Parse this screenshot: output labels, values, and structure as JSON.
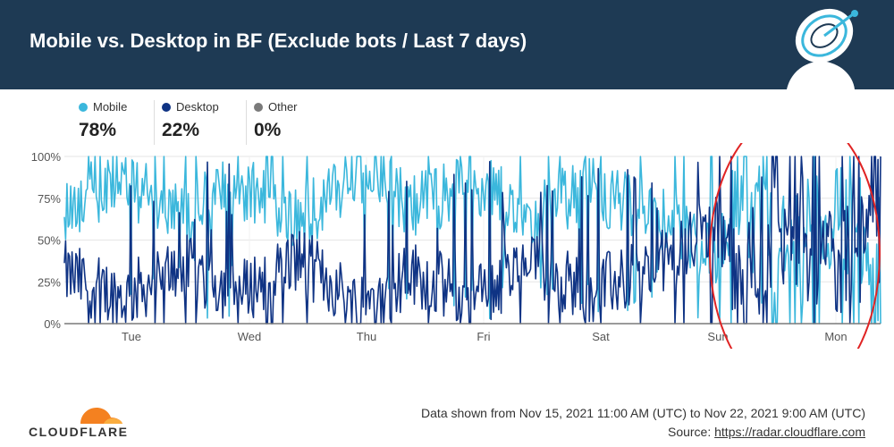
{
  "header": {
    "title": "Mobile vs. Desktop in BF (Exclude bots / Last 7 days)"
  },
  "icons": {
    "header_art": "satellite-dish-icon",
    "logo": "cloudflare-cloud-icon"
  },
  "colors": {
    "header_bg": "#1e3a54",
    "mobile": "#3bb7dc",
    "desktop": "#0f3384",
    "other": "#7a7a7a",
    "annotation": "#e02424"
  },
  "legend": [
    {
      "name": "Mobile",
      "value": "78%",
      "color": "#3bb7dc"
    },
    {
      "name": "Desktop",
      "value": "22%",
      "color": "#0f3384"
    },
    {
      "name": "Other",
      "value": "0%",
      "color": "#7a7a7a"
    }
  ],
  "chart_data": {
    "type": "line",
    "x_tick_labels": [
      "Tue",
      "Wed",
      "Thu",
      "Fri",
      "Sat",
      "Sun",
      "Mon"
    ],
    "y_tick_labels": [
      "0%",
      "25%",
      "50%",
      "75%",
      "100%"
    ],
    "ylim": [
      0,
      100
    ],
    "grid": true,
    "time_range": [
      "2021-11-15 11:00",
      "2021-11-22 09:00"
    ],
    "series": [
      {
        "name": "Mobile",
        "color": "#3bb7dc"
      },
      {
        "name": "Desktop",
        "color": "#0f3384"
      },
      {
        "name": "Other",
        "color": "#7a7a7a"
      }
    ],
    "x": [
      "2021-11-15 11:00",
      "2021-11-15 23:00",
      "2021-11-16 11:00",
      "2021-11-16 23:00",
      "2021-11-17 11:00",
      "2021-11-17 23:00",
      "2021-11-18 11:00",
      "2021-11-18 23:00",
      "2021-11-19 11:00",
      "2021-11-19 23:00",
      "2021-11-20 11:00",
      "2021-11-20 23:00",
      "2021-11-21 11:00",
      "2021-11-21 23:00",
      "2021-11-22 09:00"
    ],
    "desktop_values": [
      30,
      15,
      35,
      18,
      40,
      12,
      30,
      15,
      35,
      20,
      30,
      55,
      50,
      55,
      60
    ],
    "annotation": {
      "type": "ellipse",
      "color": "#e02424",
      "x_range": [
        "2021-11-20 23:00",
        "2021-11-22 09:00"
      ]
    }
  },
  "footer": {
    "logo_text": "CLOUDFLARE",
    "range_text": "Data shown from Nov 15, 2021 11:00 AM (UTC) to Nov 22, 2021 9:00 AM (UTC)",
    "source_label": "Source:",
    "source_link": "https://radar.cloudflare.com"
  }
}
